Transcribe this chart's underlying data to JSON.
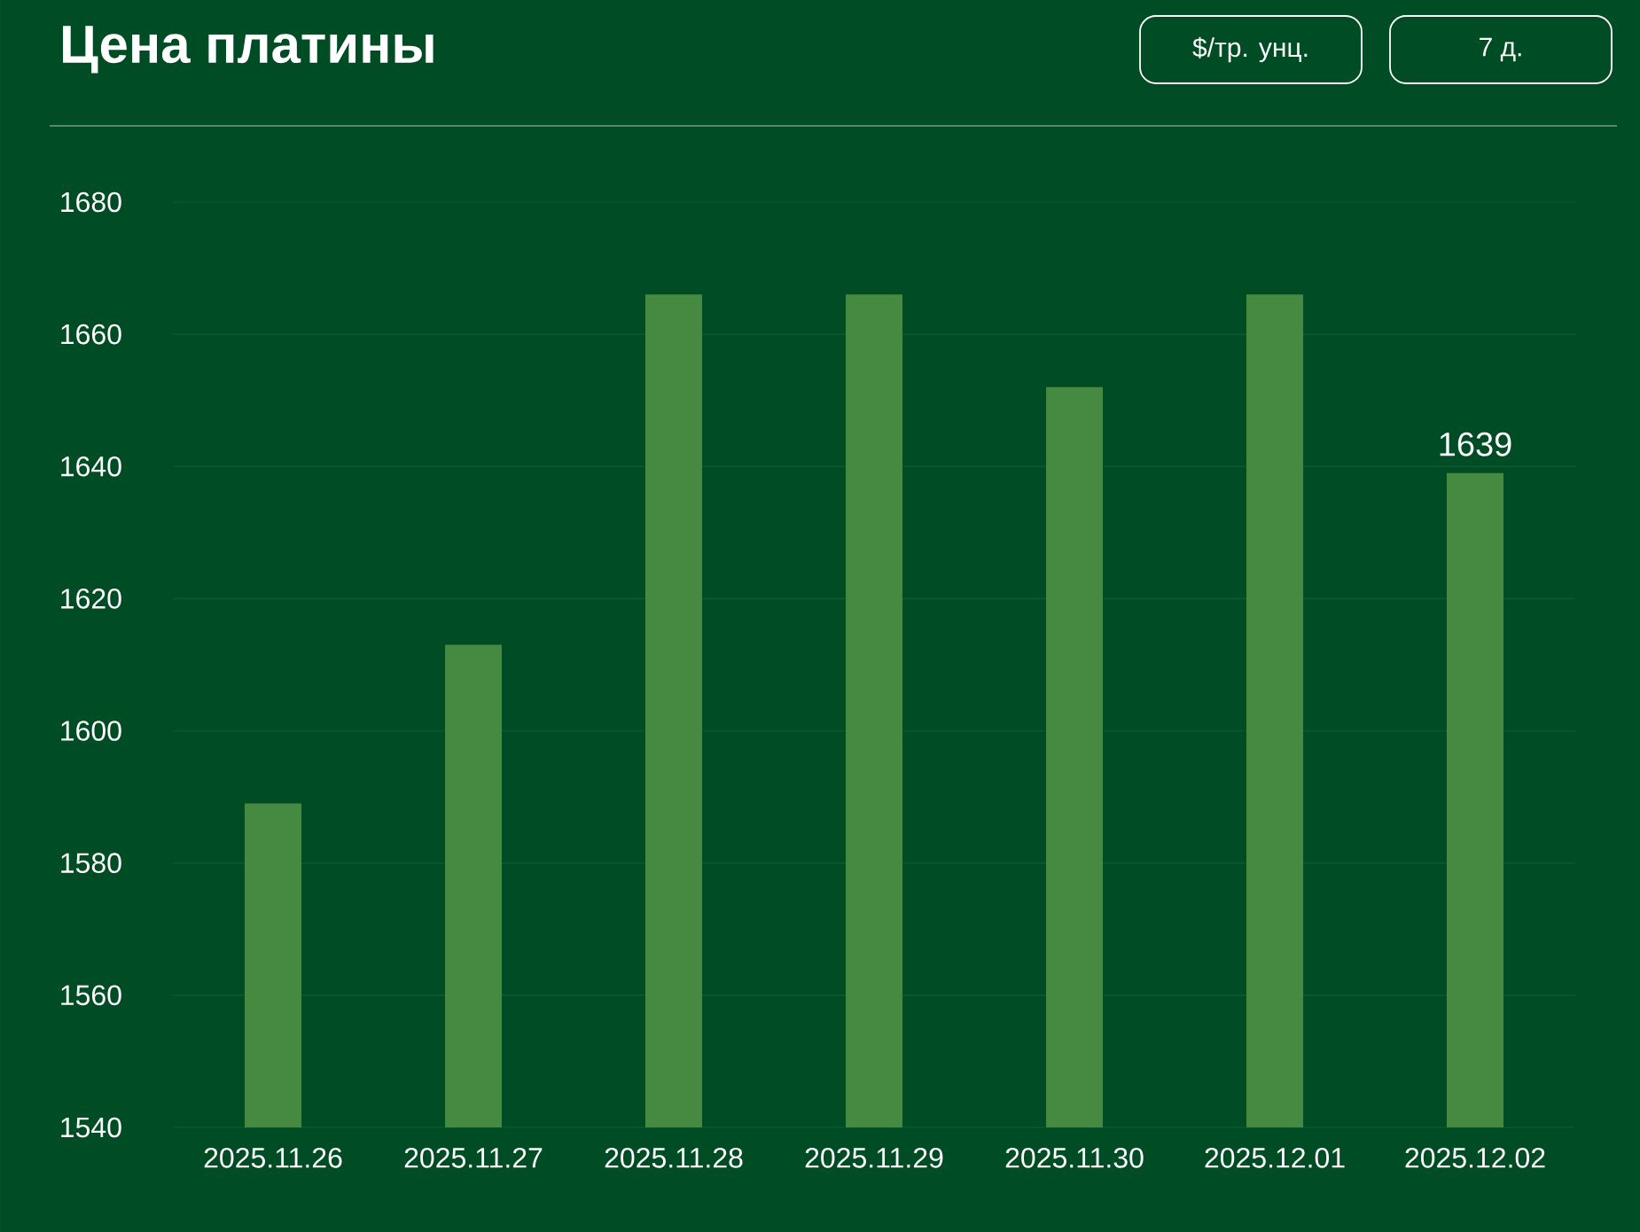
{
  "chart_data": {
    "type": "bar",
    "title": "Цена платины",
    "categories": [
      "2025.11.26",
      "2025.11.27",
      "2025.11.28",
      "2025.11.29",
      "2025.11.30",
      "2025.12.01",
      "2025.12.02"
    ],
    "values": [
      1589,
      1613,
      1666,
      1666,
      1652,
      1666,
      1639
    ],
    "value_labels": [
      null,
      null,
      null,
      null,
      null,
      null,
      "1639"
    ],
    "color": "#468a41",
    "ylim": [
      1540,
      1680
    ],
    "yticks": [
      1540,
      1560,
      1580,
      1600,
      1620,
      1640,
      1660,
      1680
    ],
    "grid": "y",
    "annotations": [
      "$/тр. унц.",
      "7 д."
    ]
  }
}
